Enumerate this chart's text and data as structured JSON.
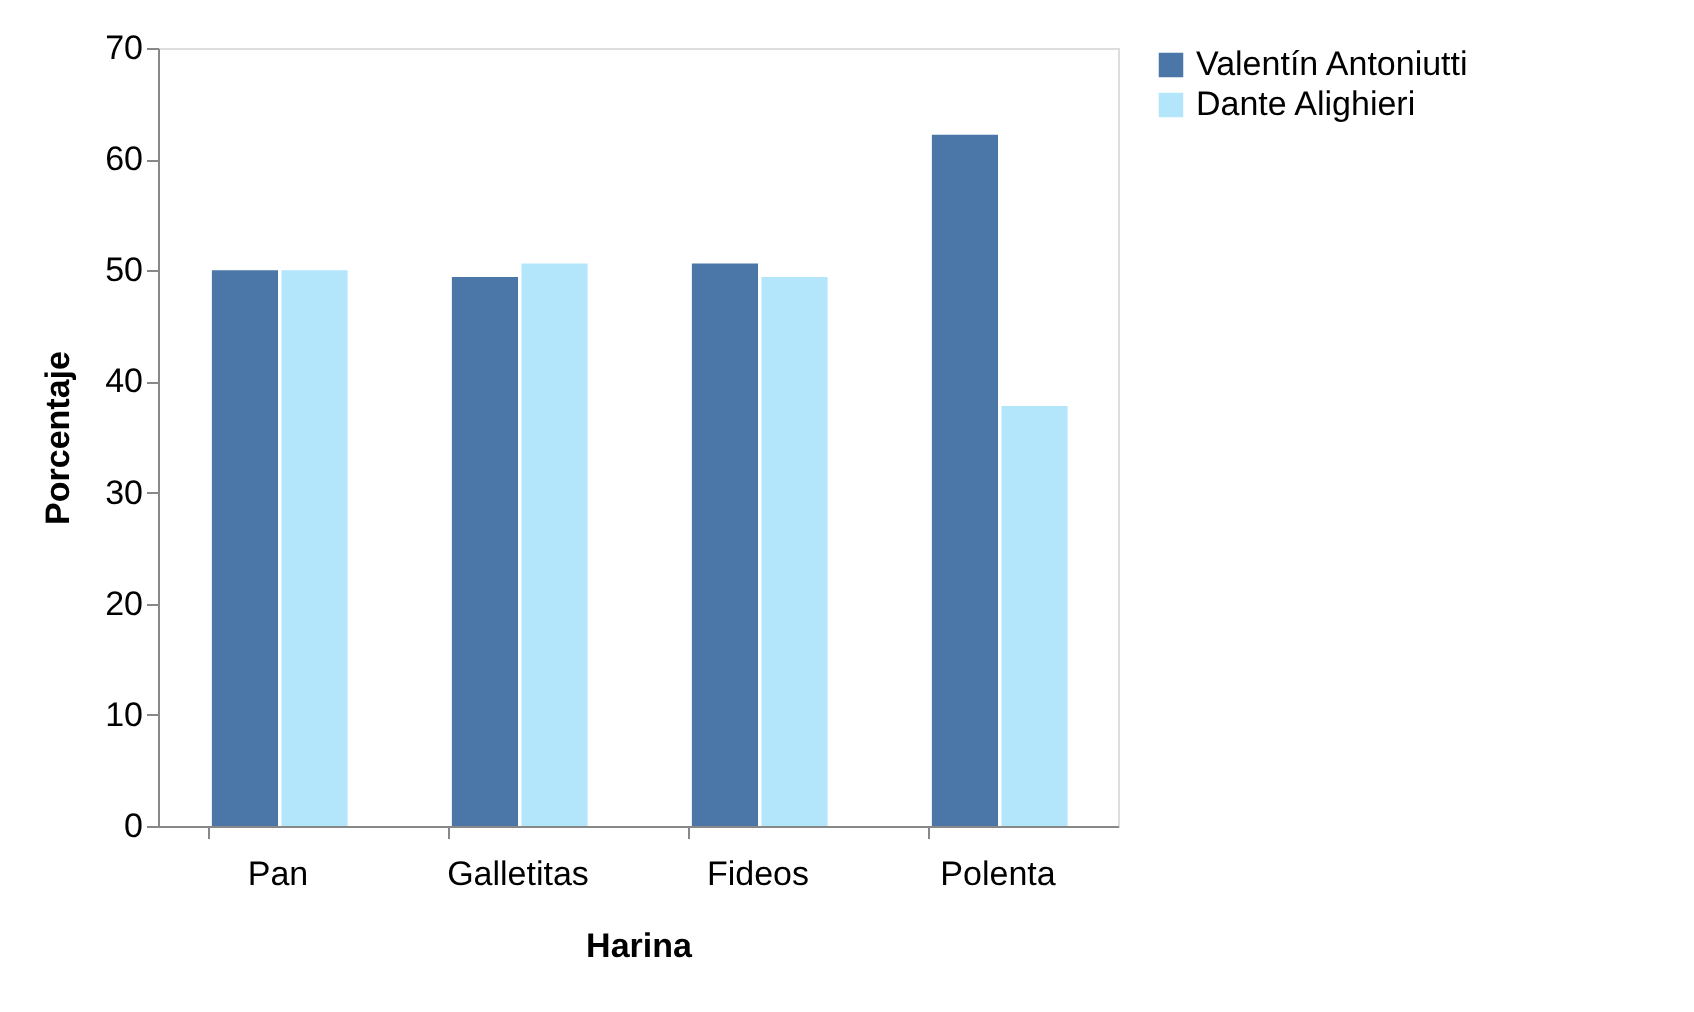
{
  "chart_data": {
    "type": "bar",
    "xlabel": "Harina",
    "ylabel": "Porcentaje",
    "categories": [
      "Pan",
      "Galletitas",
      "Fideos",
      "Polenta"
    ],
    "series": [
      {
        "name": "Valentín Antoniutti",
        "color": "#4a76a8",
        "values": [
          50,
          49.4,
          50.6,
          62.2
        ]
      },
      {
        "name": "Dante Alighieri",
        "color": "#b3e5fb",
        "values": [
          50,
          50.6,
          49.4,
          37.8
        ]
      }
    ],
    "ylim": [
      0,
      70
    ],
    "yticks": [
      0,
      10,
      20,
      30,
      40,
      50,
      60,
      70
    ],
    "grid": false,
    "legend": "right"
  }
}
